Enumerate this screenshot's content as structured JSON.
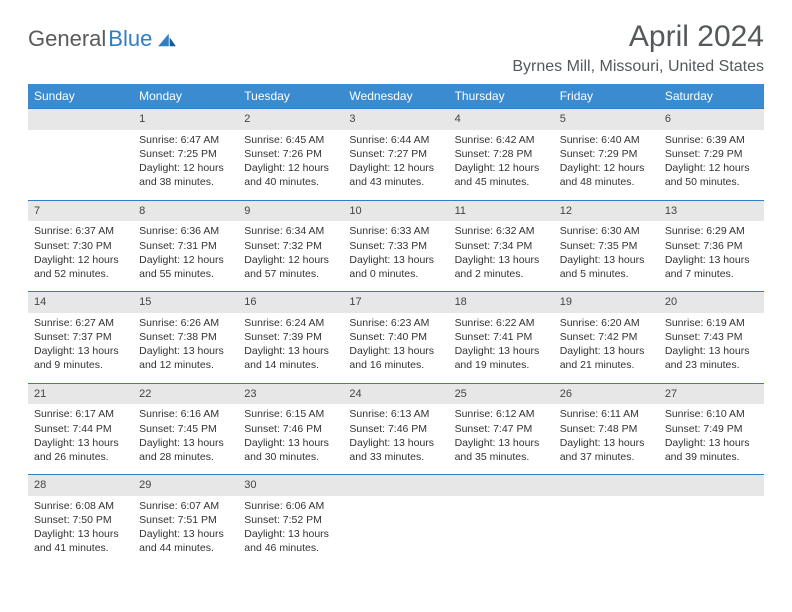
{
  "logo": {
    "text1": "General",
    "text2": "Blue"
  },
  "title": "April 2024",
  "location": "Byrnes Mill, Missouri, United States",
  "colors": {
    "header_bg": "#3a8bcf",
    "header_fg": "#ffffff",
    "daynum_bg": "#e7e7e7",
    "border": "#2f7fc2",
    "text": "#333333",
    "title_text": "#55595c"
  },
  "weekdays": [
    "Sunday",
    "Monday",
    "Tuesday",
    "Wednesday",
    "Thursday",
    "Friday",
    "Saturday"
  ],
  "start_weekday": 1,
  "days": [
    {
      "n": 1,
      "sunrise": "6:47 AM",
      "sunset": "7:25 PM",
      "daylight": "12 hours and 38 minutes."
    },
    {
      "n": 2,
      "sunrise": "6:45 AM",
      "sunset": "7:26 PM",
      "daylight": "12 hours and 40 minutes."
    },
    {
      "n": 3,
      "sunrise": "6:44 AM",
      "sunset": "7:27 PM",
      "daylight": "12 hours and 43 minutes."
    },
    {
      "n": 4,
      "sunrise": "6:42 AM",
      "sunset": "7:28 PM",
      "daylight": "12 hours and 45 minutes."
    },
    {
      "n": 5,
      "sunrise": "6:40 AM",
      "sunset": "7:29 PM",
      "daylight": "12 hours and 48 minutes."
    },
    {
      "n": 6,
      "sunrise": "6:39 AM",
      "sunset": "7:29 PM",
      "daylight": "12 hours and 50 minutes."
    },
    {
      "n": 7,
      "sunrise": "6:37 AM",
      "sunset": "7:30 PM",
      "daylight": "12 hours and 52 minutes."
    },
    {
      "n": 8,
      "sunrise": "6:36 AM",
      "sunset": "7:31 PM",
      "daylight": "12 hours and 55 minutes."
    },
    {
      "n": 9,
      "sunrise": "6:34 AM",
      "sunset": "7:32 PM",
      "daylight": "12 hours and 57 minutes."
    },
    {
      "n": 10,
      "sunrise": "6:33 AM",
      "sunset": "7:33 PM",
      "daylight": "13 hours and 0 minutes."
    },
    {
      "n": 11,
      "sunrise": "6:32 AM",
      "sunset": "7:34 PM",
      "daylight": "13 hours and 2 minutes."
    },
    {
      "n": 12,
      "sunrise": "6:30 AM",
      "sunset": "7:35 PM",
      "daylight": "13 hours and 5 minutes."
    },
    {
      "n": 13,
      "sunrise": "6:29 AM",
      "sunset": "7:36 PM",
      "daylight": "13 hours and 7 minutes."
    },
    {
      "n": 14,
      "sunrise": "6:27 AM",
      "sunset": "7:37 PM",
      "daylight": "13 hours and 9 minutes."
    },
    {
      "n": 15,
      "sunrise": "6:26 AM",
      "sunset": "7:38 PM",
      "daylight": "13 hours and 12 minutes."
    },
    {
      "n": 16,
      "sunrise": "6:24 AM",
      "sunset": "7:39 PM",
      "daylight": "13 hours and 14 minutes."
    },
    {
      "n": 17,
      "sunrise": "6:23 AM",
      "sunset": "7:40 PM",
      "daylight": "13 hours and 16 minutes."
    },
    {
      "n": 18,
      "sunrise": "6:22 AM",
      "sunset": "7:41 PM",
      "daylight": "13 hours and 19 minutes."
    },
    {
      "n": 19,
      "sunrise": "6:20 AM",
      "sunset": "7:42 PM",
      "daylight": "13 hours and 21 minutes."
    },
    {
      "n": 20,
      "sunrise": "6:19 AM",
      "sunset": "7:43 PM",
      "daylight": "13 hours and 23 minutes."
    },
    {
      "n": 21,
      "sunrise": "6:17 AM",
      "sunset": "7:44 PM",
      "daylight": "13 hours and 26 minutes."
    },
    {
      "n": 22,
      "sunrise": "6:16 AM",
      "sunset": "7:45 PM",
      "daylight": "13 hours and 28 minutes."
    },
    {
      "n": 23,
      "sunrise": "6:15 AM",
      "sunset": "7:46 PM",
      "daylight": "13 hours and 30 minutes."
    },
    {
      "n": 24,
      "sunrise": "6:13 AM",
      "sunset": "7:46 PM",
      "daylight": "13 hours and 33 minutes."
    },
    {
      "n": 25,
      "sunrise": "6:12 AM",
      "sunset": "7:47 PM",
      "daylight": "13 hours and 35 minutes."
    },
    {
      "n": 26,
      "sunrise": "6:11 AM",
      "sunset": "7:48 PM",
      "daylight": "13 hours and 37 minutes."
    },
    {
      "n": 27,
      "sunrise": "6:10 AM",
      "sunset": "7:49 PM",
      "daylight": "13 hours and 39 minutes."
    },
    {
      "n": 28,
      "sunrise": "6:08 AM",
      "sunset": "7:50 PM",
      "daylight": "13 hours and 41 minutes."
    },
    {
      "n": 29,
      "sunrise": "6:07 AM",
      "sunset": "7:51 PM",
      "daylight": "13 hours and 44 minutes."
    },
    {
      "n": 30,
      "sunrise": "6:06 AM",
      "sunset": "7:52 PM",
      "daylight": "13 hours and 46 minutes."
    }
  ],
  "labels": {
    "sunrise": "Sunrise:",
    "sunset": "Sunset:",
    "daylight": "Daylight:"
  }
}
